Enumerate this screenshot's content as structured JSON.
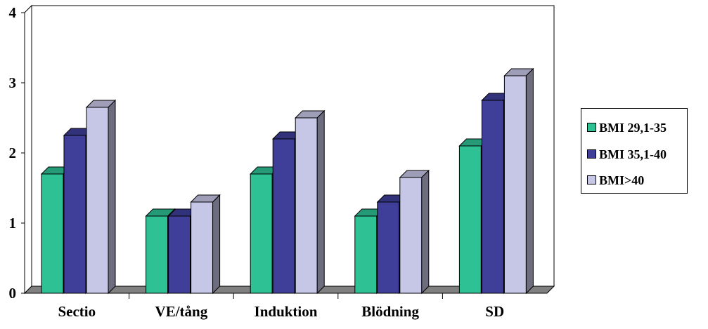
{
  "chart_data": {
    "type": "bar",
    "categories": [
      "Sectio",
      "VE/tång",
      "Induktion",
      "Blödning",
      "SD"
    ],
    "series": [
      {
        "name": "BMI 29,1-35",
        "values": [
          1.7,
          1.1,
          1.7,
          1.1,
          2.1
        ],
        "color": "#2ec193"
      },
      {
        "name": "BMI 35,1-40",
        "values": [
          2.25,
          1.1,
          2.2,
          1.3,
          2.75
        ],
        "color": "#3f3f99"
      },
      {
        "name": "BMI>40",
        "values": [
          2.65,
          1.3,
          2.5,
          1.65,
          3.1
        ],
        "color": "#c6c6e6"
      }
    ],
    "y_ticks": [
      "0",
      "1",
      "2",
      "3",
      "4"
    ],
    "ylim": [
      0,
      4
    ],
    "grid": true,
    "legend_position": "right",
    "title": "",
    "xlabel": "",
    "ylabel": ""
  }
}
